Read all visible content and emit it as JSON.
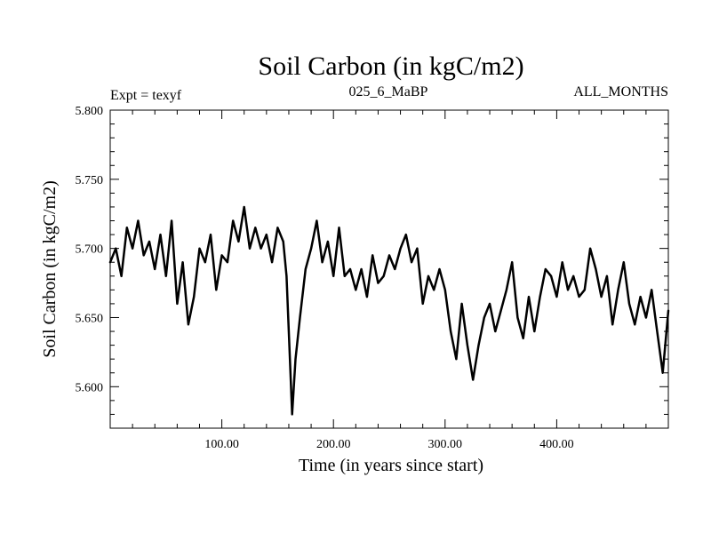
{
  "chart_data": {
    "type": "line",
    "title": "Soil Carbon (in kgC/m2)",
    "subtitle_left": "Expt = texyf",
    "subtitle_center": "025_6_MaBP",
    "subtitle_right": "ALL_MONTHS",
    "xlabel": "Time (in years since start)",
    "ylabel": "Soil Carbon (in kgC/m2)",
    "xlim": [
      0,
      500
    ],
    "ylim": [
      5.57,
      5.8
    ],
    "x_ticks": [
      100,
      200,
      300,
      400
    ],
    "x_tick_labels": [
      "100.00",
      "200.00",
      "300.00",
      "400.00"
    ],
    "y_ticks": [
      5.6,
      5.65,
      5.7,
      5.75,
      5.8
    ],
    "y_tick_labels": [
      "5.600",
      "5.650",
      "5.700",
      "5.750",
      "5.800"
    ],
    "grid": false,
    "line_color": "#000000",
    "series": [
      {
        "x": [
          0,
          5,
          10,
          15,
          20,
          25,
          30,
          35,
          40,
          45,
          50,
          55,
          60,
          65,
          70,
          75,
          80,
          85,
          90,
          95,
          100,
          105,
          110,
          115,
          120,
          125,
          130,
          135,
          140,
          145,
          150,
          155,
          158,
          161,
          163,
          166,
          170,
          175,
          180,
          185,
          190,
          195,
          200,
          205,
          210,
          215,
          220,
          225,
          230,
          235,
          240,
          245,
          250,
          255,
          260,
          265,
          270,
          275,
          280,
          285,
          290,
          295,
          300,
          305,
          310,
          315,
          320,
          325,
          330,
          335,
          340,
          345,
          350,
          355,
          360,
          365,
          370,
          375,
          380,
          385,
          390,
          395,
          400,
          405,
          410,
          415,
          420,
          425,
          430,
          435,
          440,
          445,
          450,
          455,
          460,
          465,
          470,
          475,
          480,
          485,
          490,
          495,
          500
        ],
        "y": [
          5.69,
          5.7,
          5.68,
          5.715,
          5.7,
          5.72,
          5.695,
          5.705,
          5.685,
          5.71,
          5.68,
          5.72,
          5.66,
          5.69,
          5.645,
          5.665,
          5.7,
          5.69,
          5.71,
          5.67,
          5.695,
          5.69,
          5.72,
          5.705,
          5.73,
          5.7,
          5.715,
          5.7,
          5.71,
          5.69,
          5.715,
          5.705,
          5.68,
          5.62,
          5.58,
          5.62,
          5.65,
          5.685,
          5.7,
          5.72,
          5.69,
          5.705,
          5.68,
          5.715,
          5.68,
          5.685,
          5.67,
          5.685,
          5.665,
          5.695,
          5.675,
          5.68,
          5.695,
          5.685,
          5.7,
          5.71,
          5.69,
          5.7,
          5.66,
          5.68,
          5.67,
          5.685,
          5.67,
          5.64,
          5.62,
          5.66,
          5.63,
          5.605,
          5.63,
          5.65,
          5.66,
          5.64,
          5.655,
          5.67,
          5.69,
          5.65,
          5.635,
          5.665,
          5.64,
          5.665,
          5.685,
          5.68,
          5.665,
          5.69,
          5.67,
          5.68,
          5.665,
          5.67,
          5.7,
          5.685,
          5.665,
          5.68,
          5.645,
          5.67,
          5.69,
          5.66,
          5.645,
          5.665,
          5.65,
          5.67,
          5.64,
          5.61,
          5.655
        ]
      }
    ]
  }
}
